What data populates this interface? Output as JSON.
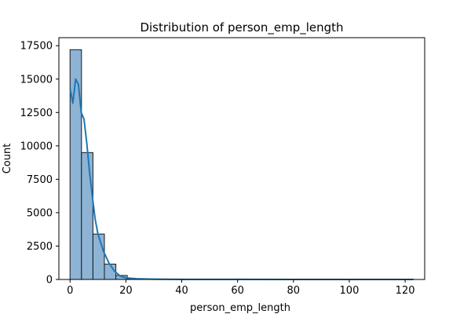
{
  "chart_data": {
    "type": "bar",
    "title": "Distribution of person_emp_length",
    "xlabel": "person_emp_length",
    "ylabel": "Count",
    "xlim": [
      -4,
      127
    ],
    "ylim": [
      0,
      18100
    ],
    "xticks": [
      0,
      20,
      40,
      60,
      80,
      100,
      120
    ],
    "yticks": [
      0,
      2500,
      5000,
      7500,
      10000,
      12500,
      15000,
      17500
    ],
    "bin_edges": [
      0,
      4.1,
      8.2,
      12.3,
      16.4,
      20.5,
      24.6,
      28.7,
      32.8,
      36.9,
      41.0,
      45.1,
      49.2,
      53.3,
      57.4,
      61.5,
      65.6,
      69.7,
      73.8,
      77.9,
      82.0,
      86.1,
      90.2,
      94.3,
      98.4,
      102.5,
      106.6,
      110.7,
      114.8,
      118.9,
      123.0
    ],
    "values": [
      17200,
      9500,
      3400,
      1150,
      300,
      60,
      10,
      3,
      2,
      1,
      0,
      0,
      0,
      0,
      0,
      0,
      0,
      0,
      0,
      0,
      0,
      0,
      0,
      0,
      0,
      0,
      0,
      0,
      0,
      2
    ],
    "kde": {
      "x": [
        0,
        1,
        2,
        3,
        4,
        5,
        6,
        7,
        8,
        9,
        10,
        12,
        14,
        16,
        18,
        20,
        24,
        30,
        40,
        60,
        80,
        100,
        123
      ],
      "y": [
        14300,
        13200,
        15000,
        14600,
        12500,
        12000,
        10200,
        8000,
        6200,
        4500,
        3400,
        2100,
        1200,
        600,
        250,
        120,
        50,
        20,
        10,
        5,
        3,
        3,
        3
      ]
    },
    "colors": {
      "bar_fill": "#8db4d5",
      "bar_edge": "#1a1a1a",
      "kde_line": "#1f77b4"
    },
    "grid": false,
    "legend": "none"
  }
}
